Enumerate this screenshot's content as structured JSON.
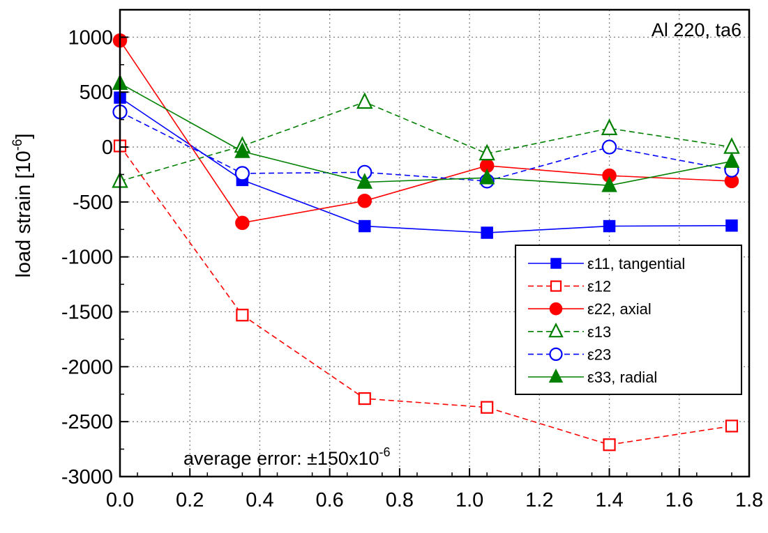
{
  "chart_data": {
    "type": "line",
    "title": "",
    "xlabel": "",
    "ylabel": "load strain [10",
    "ylabel_exponent": "-6",
    "ylabel_close": "]",
    "xlim": [
      0.0,
      1.8
    ],
    "ylim": [
      -3000,
      1250
    ],
    "x_ticks": [
      "0.0",
      "0.2",
      "0.4",
      "0.6",
      "0.8",
      "1.0",
      "1.2",
      "1.4",
      "1.6",
      "1.8"
    ],
    "y_ticks": [
      "1000",
      "500",
      "0",
      "-500",
      "-1000",
      "-1500",
      "-2000",
      "-2500",
      "-3000"
    ],
    "grid": true,
    "legend_position": "center-right",
    "annotations": {
      "sample": "Al 220, ta6",
      "error_text": "average error: ±150x10",
      "error_exponent": "-6"
    },
    "x": [
      0.0,
      0.35,
      0.7,
      1.05,
      1.4,
      1.75
    ],
    "series": [
      {
        "name": "ε11, tangential",
        "color": "#0000ff",
        "dash": "solid",
        "marker": "square",
        "filled": true,
        "values": [
          450,
          -300,
          -720,
          -780,
          -720,
          -715
        ]
      },
      {
        "name": "ε12",
        "color": "#ff0000",
        "dash": "dashed",
        "marker": "square",
        "filled": false,
        "values": [
          10,
          -1530,
          -2290,
          -2370,
          -2710,
          -2540
        ]
      },
      {
        "name": "ε22, axial",
        "color": "#ff0000",
        "dash": "solid",
        "marker": "circle",
        "filled": true,
        "values": [
          970,
          -690,
          -490,
          -170,
          -260,
          -310
        ]
      },
      {
        "name": "ε13",
        "color": "#008000",
        "dash": "dashed",
        "marker": "triangle",
        "filled": false,
        "values": [
          -310,
          10,
          410,
          -60,
          170,
          0
        ]
      },
      {
        "name": "ε23",
        "color": "#0000ff",
        "dash": "dashed",
        "marker": "circle",
        "filled": false,
        "values": [
          320,
          -240,
          -230,
          -310,
          0,
          -210
        ]
      },
      {
        "name": "ε33, radial",
        "color": "#008000",
        "dash": "solid",
        "marker": "triangle",
        "filled": true,
        "values": [
          580,
          -40,
          -320,
          -280,
          -350,
          -130
        ]
      }
    ]
  }
}
